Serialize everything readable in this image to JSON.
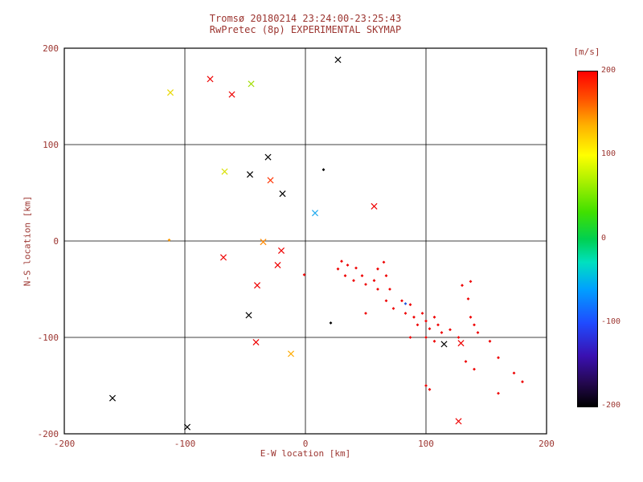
{
  "chart_data": {
    "type": "scatter",
    "title": "Tromsø 20180214 23:24:00-23:25:43",
    "subtitle": "RwPretec (8p) EXPERIMENTAL SKYMAP",
    "xlabel": "E-W location [km]",
    "ylabel": "N-S location [km]",
    "xlim": [
      -200,
      200
    ],
    "ylim": [
      -200,
      200
    ],
    "xticks": [
      -200,
      -100,
      0,
      100,
      200
    ],
    "yticks": [
      -200,
      -100,
      0,
      100,
      200
    ],
    "grid": true,
    "legend_position": "none",
    "text_color": "#9c3530",
    "axis_color": "#000000",
    "colorbar": {
      "label": "[m/s]",
      "min": -200,
      "max": 200,
      "ticks": [
        200,
        100,
        0,
        -100,
        -200
      ],
      "stops_bottom_to_top": [
        "#000000",
        "#3a10b0",
        "#1f4bff",
        "#00a0ff",
        "#00d050",
        "#a8f000",
        "#ffff00",
        "#ffb000",
        "#ff0000"
      ]
    },
    "points": [
      {
        "x": 27,
        "y": 188,
        "c": "#000000",
        "m": "x"
      },
      {
        "x": -79,
        "y": 168,
        "c": "#ee0000",
        "m": "x"
      },
      {
        "x": -112,
        "y": 154,
        "c": "#e8d800",
        "m": "x"
      },
      {
        "x": -61,
        "y": 152,
        "c": "#ee0000",
        "m": "x"
      },
      {
        "x": -45,
        "y": 163,
        "c": "#a0dd00",
        "m": "x"
      },
      {
        "x": -31,
        "y": 87,
        "c": "#000000",
        "m": "x"
      },
      {
        "x": -67,
        "y": 72,
        "c": "#d8e000",
        "m": "x"
      },
      {
        "x": -46,
        "y": 69,
        "c": "#000000",
        "m": "x"
      },
      {
        "x": -29,
        "y": 63,
        "c": "#ff3300",
        "m": "x"
      },
      {
        "x": -19,
        "y": 49,
        "c": "#000000",
        "m": "x"
      },
      {
        "x": 8,
        "y": 29,
        "c": "#22aaee",
        "m": "x"
      },
      {
        "x": 57,
        "y": 36,
        "c": "#ee0000",
        "m": "x"
      },
      {
        "x": -35,
        "y": -1,
        "c": "#ff8800",
        "m": "x"
      },
      {
        "x": -20,
        "y": -10,
        "c": "#ee0000",
        "m": "x"
      },
      {
        "x": -68,
        "y": -17,
        "c": "#ee0000",
        "m": "x"
      },
      {
        "x": -23,
        "y": -25,
        "c": "#ee0000",
        "m": "x"
      },
      {
        "x": -40,
        "y": -46,
        "c": "#ee0000",
        "m": "x"
      },
      {
        "x": -47,
        "y": -77,
        "c": "#000000",
        "m": "x"
      },
      {
        "x": -41,
        "y": -105,
        "c": "#ee0000",
        "m": "x"
      },
      {
        "x": -12,
        "y": -117,
        "c": "#ffaa00",
        "m": "x"
      },
      {
        "x": -160,
        "y": -163,
        "c": "#000000",
        "m": "x"
      },
      {
        "x": -98,
        "y": -193,
        "c": "#000000",
        "m": "x"
      },
      {
        "x": 115,
        "y": -107,
        "c": "#000000",
        "m": "x"
      },
      {
        "x": 129,
        "y": -106,
        "c": "#ee0000",
        "m": "x"
      },
      {
        "x": 127,
        "y": -187,
        "c": "#ee0000",
        "m": "x"
      },
      {
        "x": 15,
        "y": 74,
        "c": "#000000",
        "m": "d"
      },
      {
        "x": -113,
        "y": 1,
        "c": "#ff9900",
        "m": "d"
      },
      {
        "x": -1,
        "y": -35,
        "c": "#ee0000",
        "m": "d"
      },
      {
        "x": 21,
        "y": -85,
        "c": "#000000",
        "m": "d"
      },
      {
        "x": 30,
        "y": -21,
        "c": "#ee0000",
        "m": "d"
      },
      {
        "x": 35,
        "y": -25,
        "c": "#ee0000",
        "m": "d"
      },
      {
        "x": 42,
        "y": -28,
        "c": "#ee0000",
        "m": "d"
      },
      {
        "x": 33,
        "y": -36,
        "c": "#ee0000",
        "m": "d"
      },
      {
        "x": 40,
        "y": -41,
        "c": "#ee0000",
        "m": "d"
      },
      {
        "x": 47,
        "y": -36,
        "c": "#ee0000",
        "m": "d"
      },
      {
        "x": 50,
        "y": -45,
        "c": "#ee0000",
        "m": "d"
      },
      {
        "x": 57,
        "y": -41,
        "c": "#ee0000",
        "m": "d"
      },
      {
        "x": 60,
        "y": -50,
        "c": "#ee0000",
        "m": "d"
      },
      {
        "x": 67,
        "y": -36,
        "c": "#ee0000",
        "m": "d"
      },
      {
        "x": 70,
        "y": -50,
        "c": "#ee0000",
        "m": "d"
      },
      {
        "x": 67,
        "y": -62,
        "c": "#ee0000",
        "m": "d"
      },
      {
        "x": 73,
        "y": -70,
        "c": "#ee0000",
        "m": "d"
      },
      {
        "x": 80,
        "y": -62,
        "c": "#ee0000",
        "m": "d"
      },
      {
        "x": 83,
        "y": -75,
        "c": "#ee0000",
        "m": "d"
      },
      {
        "x": 87,
        "y": -66,
        "c": "#ee0000",
        "m": "d"
      },
      {
        "x": 90,
        "y": -79,
        "c": "#ee0000",
        "m": "d"
      },
      {
        "x": 93,
        "y": -87,
        "c": "#ee0000",
        "m": "d"
      },
      {
        "x": 97,
        "y": -75,
        "c": "#ee0000",
        "m": "d"
      },
      {
        "x": 100,
        "y": -83,
        "c": "#ee0000",
        "m": "d"
      },
      {
        "x": 103,
        "y": -91,
        "c": "#ee0000",
        "m": "d"
      },
      {
        "x": 107,
        "y": -79,
        "c": "#ee0000",
        "m": "d"
      },
      {
        "x": 110,
        "y": -87,
        "c": "#ee0000",
        "m": "d"
      },
      {
        "x": 113,
        "y": -95,
        "c": "#ee0000",
        "m": "d"
      },
      {
        "x": 100,
        "y": -100,
        "c": "#ee0000",
        "m": "d"
      },
      {
        "x": 107,
        "y": -104,
        "c": "#ee0000",
        "m": "d"
      },
      {
        "x": 120,
        "y": -92,
        "c": "#ee0000",
        "m": "d"
      },
      {
        "x": 127,
        "y": -100,
        "c": "#ee0000",
        "m": "d"
      },
      {
        "x": 137,
        "y": -79,
        "c": "#ee0000",
        "m": "d"
      },
      {
        "x": 140,
        "y": -87,
        "c": "#ee0000",
        "m": "d"
      },
      {
        "x": 143,
        "y": -95,
        "c": "#ee0000",
        "m": "d"
      },
      {
        "x": 130,
        "y": -46,
        "c": "#ee0000",
        "m": "d"
      },
      {
        "x": 137,
        "y": -42,
        "c": "#ee0000",
        "m": "d"
      },
      {
        "x": 83,
        "y": -65,
        "c": "#2255dd",
        "m": "d"
      },
      {
        "x": 153,
        "y": -104,
        "c": "#ee0000",
        "m": "d"
      },
      {
        "x": 160,
        "y": -121,
        "c": "#ee0000",
        "m": "d"
      },
      {
        "x": 173,
        "y": -137,
        "c": "#ee0000",
        "m": "d"
      },
      {
        "x": 180,
        "y": -146,
        "c": "#ee0000",
        "m": "d"
      },
      {
        "x": 133,
        "y": -125,
        "c": "#ee0000",
        "m": "d"
      },
      {
        "x": 140,
        "y": -133,
        "c": "#ee0000",
        "m": "d"
      },
      {
        "x": 100,
        "y": -150,
        "c": "#ee0000",
        "m": "d"
      },
      {
        "x": 103,
        "y": -154,
        "c": "#ee0000",
        "m": "d"
      },
      {
        "x": 50,
        "y": -75,
        "c": "#ee0000",
        "m": "d"
      },
      {
        "x": 27,
        "y": -29,
        "c": "#ee0000",
        "m": "d"
      },
      {
        "x": 60,
        "y": -29,
        "c": "#ee0000",
        "m": "d"
      },
      {
        "x": 65,
        "y": -22,
        "c": "#ee0000",
        "m": "d"
      },
      {
        "x": 87,
        "y": -100,
        "c": "#ee0000",
        "m": "d"
      },
      {
        "x": 135,
        "y": -60,
        "c": "#ee0000",
        "m": "d"
      },
      {
        "x": 160,
        "y": -158,
        "c": "#ee0000",
        "m": "d"
      }
    ]
  }
}
